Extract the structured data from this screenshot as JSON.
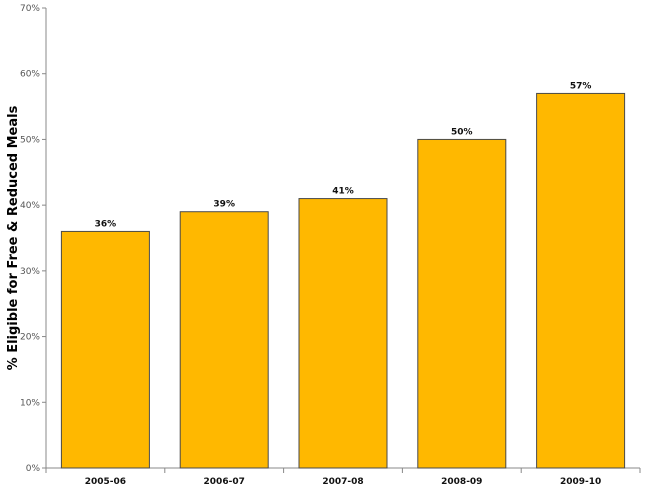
{
  "chart_data": {
    "type": "bar",
    "title": "",
    "xlabel": "",
    "ylabel": "% Eligible for Free & Reduced Meals",
    "categories": [
      "2005-06",
      "2006-07",
      "2007-08",
      "2008-09",
      "2009-10"
    ],
    "values": [
      36,
      39,
      41,
      50,
      57
    ],
    "data_labels": [
      "36%",
      "39%",
      "41%",
      "50%",
      "57%"
    ],
    "ylim": [
      0,
      70
    ],
    "yticks": [
      0,
      10,
      20,
      30,
      40,
      50,
      60,
      70
    ],
    "ytick_labels": [
      "0%",
      "10%",
      "20%",
      "30%",
      "40%",
      "50%",
      "60%",
      "70%"
    ],
    "grid": false,
    "legend": "none",
    "bar_color": "#FFB800",
    "bar_edge_color": "#4a4a4a",
    "axis_color": "#888888"
  }
}
